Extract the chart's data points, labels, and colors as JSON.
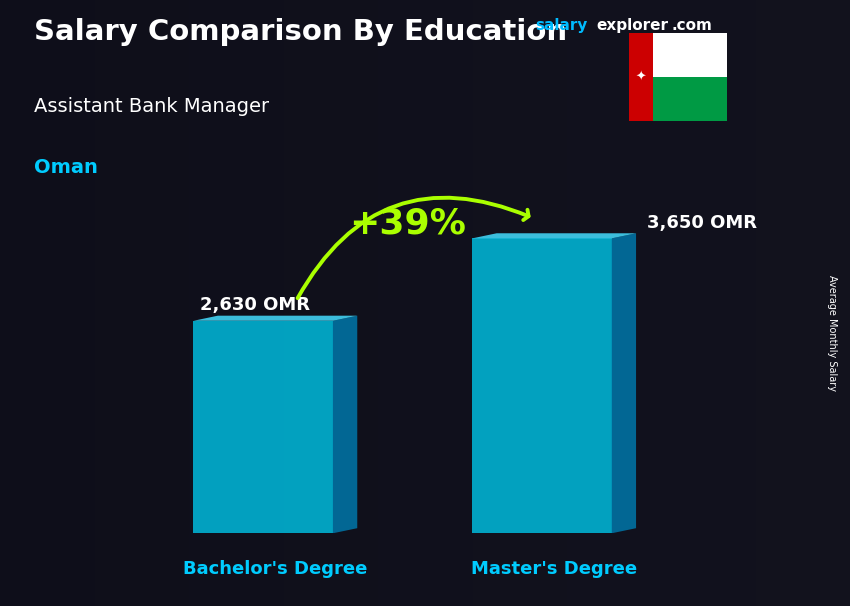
{
  "title_main": "Salary Comparison By Education",
  "title_sub": "Assistant Bank Manager",
  "title_country": "Oman",
  "watermark_salary": "salary",
  "watermark_explorer": "explorer",
  "watermark_com": ".com",
  "ylabel_rotated": "Average Monthly Salary",
  "categories": [
    "Bachelor's Degree",
    "Master's Degree"
  ],
  "values": [
    2630,
    3650
  ],
  "bar_labels": [
    "2,630 OMR",
    "3,650 OMR"
  ],
  "pct_change": "+39%",
  "bar_face_color": "#00BBDD",
  "bar_side_color": "#0077AA",
  "bar_top_color": "#44DDFF",
  "title_color": "#FFFFFF",
  "subtitle_color": "#FFFFFF",
  "country_color": "#00CCFF",
  "label_color": "#FFFFFF",
  "category_color": "#00CCFF",
  "pct_color": "#AAFF00",
  "arrow_color": "#AAFF00",
  "watermark_salary_color": "#00BBFF",
  "watermark_other_color": "#FFFFFF",
  "bg_color": "#1A1A2A",
  "ylim_max": 4500,
  "fig_width": 8.5,
  "fig_height": 6.06,
  "dpi": 100
}
